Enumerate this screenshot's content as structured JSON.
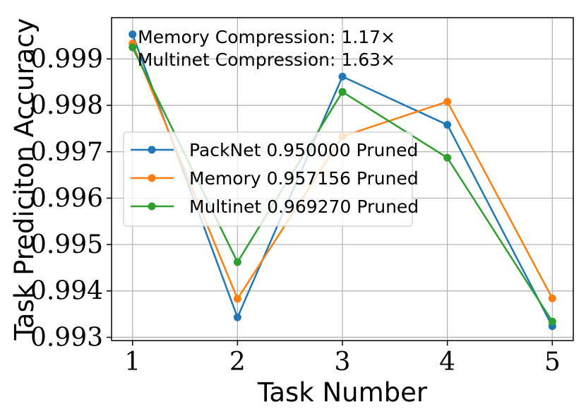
{
  "chart_data": {
    "type": "line",
    "title": "",
    "xlabel": "Task Number",
    "ylabel": "Task Prediciton Accuracy",
    "x": [
      1,
      2,
      3,
      4,
      5
    ],
    "xticks": [
      "1",
      "2",
      "3",
      "4",
      "5"
    ],
    "xlim": [
      0.8,
      5.2
    ],
    "yticks": [
      "0.993",
      "0.994",
      "0.995",
      "0.996",
      "0.997",
      "0.998",
      "0.999"
    ],
    "ytick_values": [
      0.993,
      0.994,
      0.995,
      0.996,
      0.997,
      0.998,
      0.999
    ],
    "ylim": [
      0.99293,
      0.99989
    ],
    "grid": true,
    "legend_position": "center-left",
    "series": [
      {
        "name": "PackNet 0.950000 Pruned",
        "color": "#1f77b4",
        "values": [
          0.99953,
          0.99343,
          0.99862,
          0.99758,
          0.99324
        ]
      },
      {
        "name": "Memory 0.957156 Pruned",
        "color": "#ff7f0e",
        "values": [
          0.99933,
          0.99383,
          0.99733,
          0.99808,
          0.99384
        ]
      },
      {
        "name": "Multinet 0.969270 Pruned",
        "color": "#2ca02c",
        "values": [
          0.99925,
          0.99462,
          0.99829,
          0.99687,
          0.99334
        ]
      }
    ],
    "annotations": [
      "Memory Compression: 1.17×",
      "Multinet Compression: 1.63×"
    ]
  }
}
